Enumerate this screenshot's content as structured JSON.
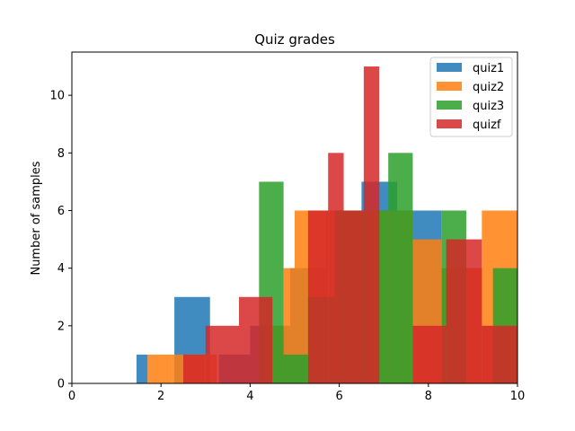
{
  "chart_data": {
    "type": "bar",
    "title": "Quiz grades",
    "xlabel": "",
    "ylabel": "Number of samples",
    "xlim": [
      0,
      10
    ],
    "ylim": [
      0,
      11.5
    ],
    "xticks": [
      "0",
      "2",
      "4",
      "6",
      "8",
      "10"
    ],
    "yticks": [
      "0",
      "2",
      "4",
      "6",
      "8",
      "10"
    ],
    "grid": false,
    "legend_position": "top-right",
    "series": [
      {
        "name": "quiz1",
        "color": "#1f77b4",
        "bins": [
          {
            "x0": 1.45,
            "x1": 1.7,
            "count": 1
          },
          {
            "x0": 2.3,
            "x1": 3.1,
            "count": 3
          },
          {
            "x0": 3.3,
            "x1": 4.0,
            "count": 1
          },
          {
            "x0": 4.0,
            "x1": 4.5,
            "count": 2
          },
          {
            "x0": 4.5,
            "x1": 4.9,
            "count": 2
          },
          {
            "x0": 4.9,
            "x1": 5.7,
            "count": 4
          },
          {
            "x0": 5.7,
            "x1": 6.5,
            "count": 6
          },
          {
            "x0": 6.5,
            "x1": 7.3,
            "count": 7
          },
          {
            "x0": 7.3,
            "x1": 8.3,
            "count": 6
          },
          {
            "x0": 8.3,
            "x1": 9.2,
            "count": 4
          },
          {
            "x0": 9.2,
            "x1": 10.0,
            "count": 2
          }
        ]
      },
      {
        "name": "quiz2",
        "color": "#ff7f0e",
        "bins": [
          {
            "x0": 1.7,
            "x1": 2.25,
            "count": 1
          },
          {
            "x0": 2.25,
            "x1": 3.25,
            "count": 1
          },
          {
            "x0": 4.35,
            "x1": 4.75,
            "count": 2
          },
          {
            "x0": 4.75,
            "x1": 5.0,
            "count": 4
          },
          {
            "x0": 5.0,
            "x1": 6.1,
            "count": 6
          },
          {
            "x0": 6.1,
            "x1": 7.1,
            "count": 6
          },
          {
            "x0": 7.1,
            "x1": 7.65,
            "count": 6
          },
          {
            "x0": 7.65,
            "x1": 8.3,
            "count": 5
          },
          {
            "x0": 8.3,
            "x1": 9.2,
            "count": 4
          },
          {
            "x0": 9.2,
            "x1": 10.0,
            "count": 6
          }
        ]
      },
      {
        "name": "quiz3",
        "color": "#2ca02c",
        "bins": [
          {
            "x0": 4.2,
            "x1": 4.75,
            "count": 7
          },
          {
            "x0": 4.75,
            "x1": 5.3,
            "count": 1
          },
          {
            "x0": 5.3,
            "x1": 5.9,
            "count": 3
          },
          {
            "x0": 5.9,
            "x1": 6.5,
            "count": 6
          },
          {
            "x0": 6.5,
            "x1": 7.1,
            "count": 6
          },
          {
            "x0": 7.1,
            "x1": 7.65,
            "count": 8
          },
          {
            "x0": 7.65,
            "x1": 8.3,
            "count": 0
          },
          {
            "x0": 8.3,
            "x1": 8.85,
            "count": 6
          },
          {
            "x0": 8.85,
            "x1": 9.45,
            "count": 0
          },
          {
            "x0": 9.45,
            "x1": 10.0,
            "count": 4
          }
        ]
      },
      {
        "name": "quizf",
        "color": "#d62728",
        "bins": [
          {
            "x0": 2.5,
            "x1": 3.0,
            "count": 1
          },
          {
            "x0": 3.0,
            "x1": 3.75,
            "count": 2
          },
          {
            "x0": 3.75,
            "x1": 4.5,
            "count": 3
          },
          {
            "x0": 5.3,
            "x1": 5.75,
            "count": 6
          },
          {
            "x0": 5.75,
            "x1": 6.1,
            "count": 8
          },
          {
            "x0": 6.1,
            "x1": 6.55,
            "count": 6
          },
          {
            "x0": 6.55,
            "x1": 6.9,
            "count": 11
          },
          {
            "x0": 7.65,
            "x1": 8.4,
            "count": 2
          },
          {
            "x0": 8.4,
            "x1": 8.75,
            "count": 5
          },
          {
            "x0": 8.75,
            "x1": 9.2,
            "count": 5
          },
          {
            "x0": 9.2,
            "x1": 10.0,
            "count": 2
          }
        ]
      }
    ]
  }
}
